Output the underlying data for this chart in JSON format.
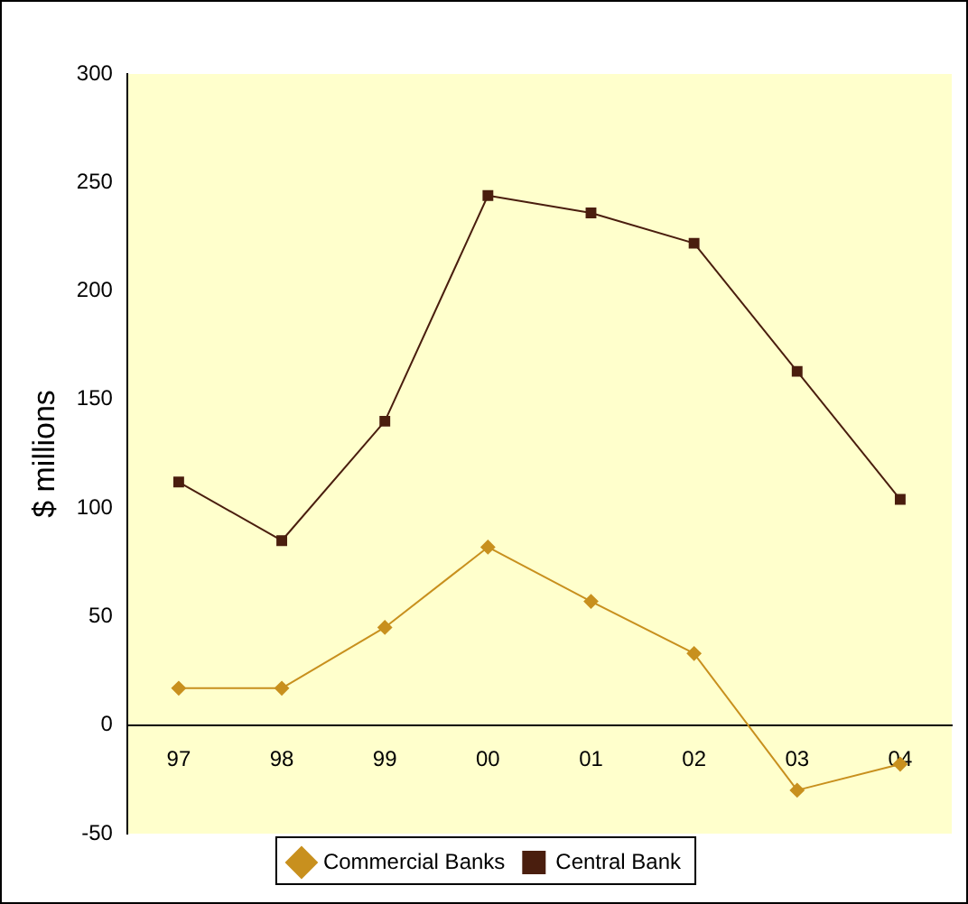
{
  "chart_data": {
    "type": "line",
    "ylabel": "$ millions",
    "categories": [
      "97",
      "98",
      "99",
      "00",
      "01",
      "02",
      "03",
      "04"
    ],
    "series": [
      {
        "name": "Commercial Banks",
        "color": "#c8901e",
        "marker": "diamond",
        "values": [
          17,
          17,
          45,
          82,
          57,
          33,
          -30,
          -18
        ]
      },
      {
        "name": "Central Bank",
        "color": "#4a1e0e",
        "marker": "square",
        "values": [
          112,
          85,
          140,
          244,
          236,
          222,
          163,
          104
        ]
      }
    ],
    "ylim": [
      -50,
      300
    ],
    "yticks": [
      -50,
      0,
      50,
      100,
      150,
      200,
      250,
      300
    ],
    "grid": false,
    "legend": "bottom",
    "line_style": "solid"
  }
}
